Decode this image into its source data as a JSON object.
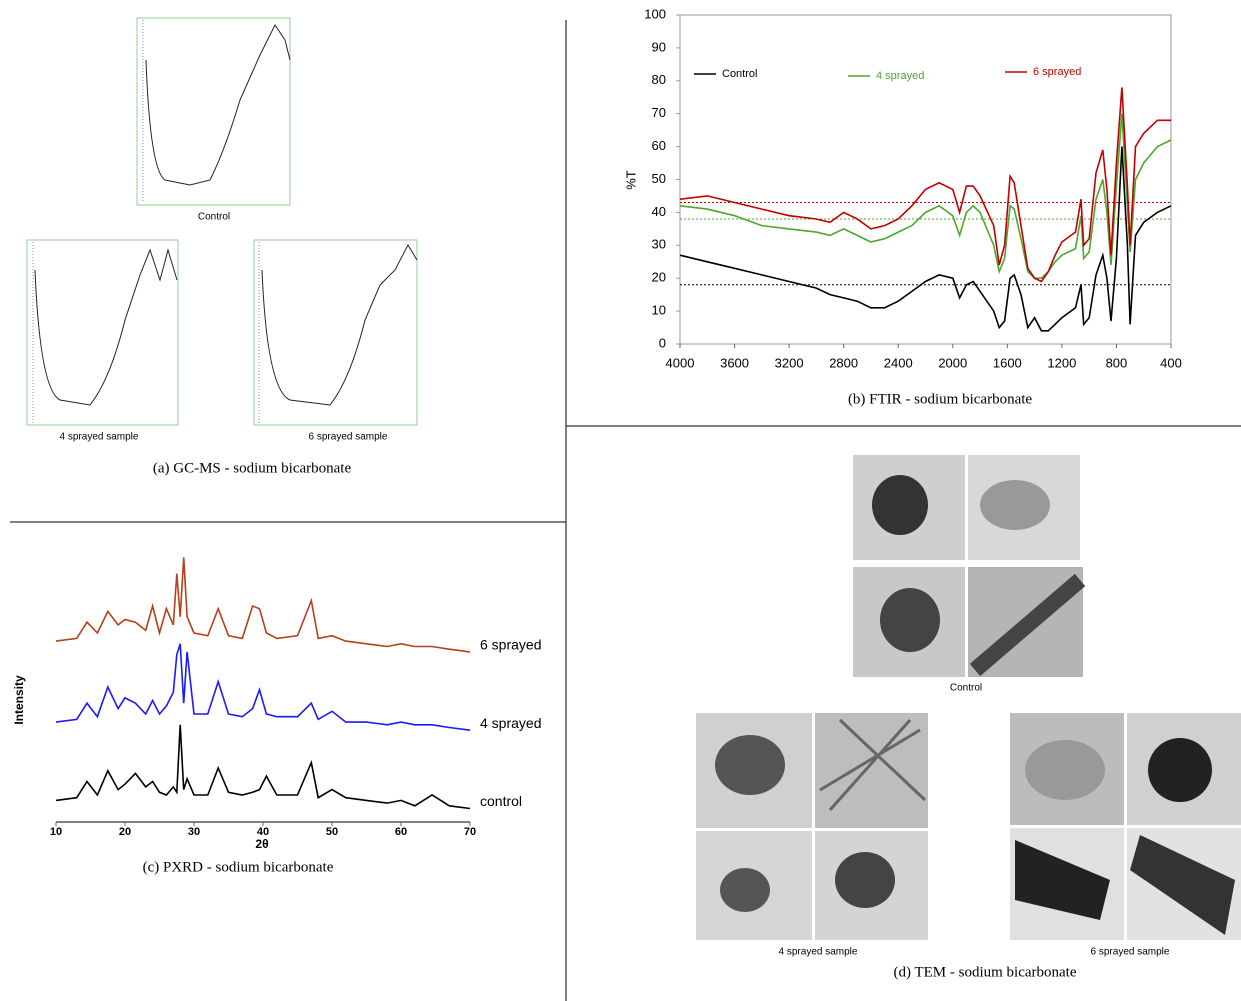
{
  "chart_data": [
    {
      "type": "line",
      "caption": "(b) FTIR - sodium bicarbonate",
      "ylabel": "%T",
      "x": [
        4000,
        3800,
        3600,
        3400,
        3200,
        3000,
        2900,
        2800,
        2700,
        2600,
        2500,
        2400,
        2300,
        2200,
        2100,
        2000,
        1950,
        1900,
        1850,
        1800,
        1700,
        1660,
        1620,
        1580,
        1550,
        1500,
        1450,
        1400,
        1350,
        1300,
        1250,
        1200,
        1100,
        1060,
        1040,
        1000,
        950,
        900,
        870,
        840,
        800,
        760,
        720,
        700,
        660,
        600,
        500,
        400
      ],
      "xlim": [
        4000,
        400
      ],
      "xticks": [
        4000,
        3600,
        3200,
        2800,
        2400,
        2000,
        1600,
        1200,
        800,
        400
      ],
      "ylim": [
        0,
        100
      ],
      "yticks": [
        0,
        10,
        20,
        30,
        40,
        50,
        60,
        70,
        80,
        90,
        100
      ],
      "reference_lines": [
        {
          "value": 18,
          "color": "#000000"
        },
        {
          "value": 38,
          "color": "#4ea72e"
        },
        {
          "value": 43,
          "color": "#c00000"
        }
      ],
      "series": [
        {
          "name": "Control",
          "color": "#000000",
          "values": [
            27,
            25,
            23,
            21,
            19,
            17,
            15,
            14,
            13,
            11,
            11,
            13,
            16,
            19,
            21,
            20,
            14,
            18,
            19,
            16,
            10,
            5,
            7,
            20,
            21,
            15,
            5,
            8,
            4,
            4,
            6,
            8,
            11,
            18,
            6,
            8,
            21,
            27,
            20,
            7,
            26,
            60,
            30,
            6,
            33,
            37,
            40,
            42
          ]
        },
        {
          "name": "4 sprayed",
          "color": "#4ea72e",
          "values": [
            42,
            41,
            39,
            36,
            35,
            34,
            33,
            35,
            33,
            31,
            32,
            34,
            36,
            40,
            42,
            39,
            33,
            40,
            42,
            40,
            30,
            22,
            26,
            42,
            41,
            32,
            22,
            20,
            20,
            22,
            25,
            27,
            29,
            39,
            26,
            28,
            44,
            50,
            40,
            24,
            48,
            70,
            42,
            28,
            50,
            55,
            60,
            62
          ]
        },
        {
          "name": "6 sprayed",
          "color": "#c00000",
          "values": [
            44,
            45,
            43,
            41,
            39,
            38,
            37,
            40,
            38,
            35,
            36,
            38,
            42,
            47,
            49,
            47,
            40,
            48,
            48,
            45,
            36,
            24,
            30,
            51,
            49,
            36,
            23,
            20,
            19,
            22,
            27,
            31,
            34,
            44,
            30,
            32,
            52,
            59,
            47,
            27,
            55,
            78,
            48,
            30,
            60,
            64,
            68,
            68
          ]
        }
      ]
    },
    {
      "type": "line",
      "caption": "(c) PXRD - sodium bicarbonate",
      "xlabel": "2θ",
      "ylabel": "Intensity",
      "x": [
        10,
        13,
        14.5,
        16,
        17.5,
        19,
        20,
        21.5,
        23,
        24,
        25,
        26,
        27,
        27.5,
        28,
        28.5,
        29,
        30,
        32,
        33.5,
        35,
        37,
        38.5,
        39.5,
        40.5,
        42,
        45,
        47,
        48,
        50,
        52,
        55,
        58,
        60,
        62,
        64.5,
        67,
        70
      ],
      "xlim": [
        10,
        70
      ],
      "xticks": [
        10,
        20,
        30,
        40,
        50,
        60,
        70
      ],
      "ylim": [
        0,
        100
      ],
      "series": [
        {
          "name": "6 sprayed",
          "color": "#b5401a",
          "values": [
            67,
            68,
            74,
            70,
            78,
            73,
            75,
            74,
            71,
            80,
            70,
            79,
            73,
            92,
            76,
            98,
            76,
            70,
            69,
            79,
            69,
            68,
            80,
            79,
            70,
            68,
            69,
            82,
            68,
            69,
            67,
            66,
            65,
            66,
            65,
            65,
            64,
            63
          ]
        },
        {
          "name": "4 sprayed",
          "color": "#1a1aff",
          "values": [
            37,
            38,
            44,
            39,
            50,
            42,
            46,
            44,
            40,
            45,
            40,
            43,
            48,
            62,
            66,
            44,
            63,
            40,
            40,
            52,
            40,
            39,
            42,
            49,
            40,
            39,
            39,
            44,
            38,
            41,
            37,
            37,
            36,
            37,
            36,
            36,
            35,
            34
          ]
        },
        {
          "name": "control",
          "color": "#000000",
          "values": [
            8,
            9,
            15,
            10,
            19,
            12,
            14,
            18,
            13,
            15,
            11,
            10,
            13,
            11,
            36,
            12,
            16,
            10,
            10,
            20,
            11,
            10,
            11,
            12,
            17,
            10,
            10,
            22,
            9,
            12,
            9,
            8,
            7,
            8,
            6,
            10,
            6,
            5
          ]
        }
      ]
    }
  ],
  "gcms": {
    "labels": [
      "Control",
      "4 sprayed sample",
      "6 sprayed sample"
    ],
    "caption": "(a) GC-MS - sodium bicarbonate"
  },
  "tem": {
    "labels": [
      "Control",
      "4 sprayed sample",
      "6 sprayed sample"
    ],
    "caption": "(d) TEM - sodium bicarbonate"
  }
}
